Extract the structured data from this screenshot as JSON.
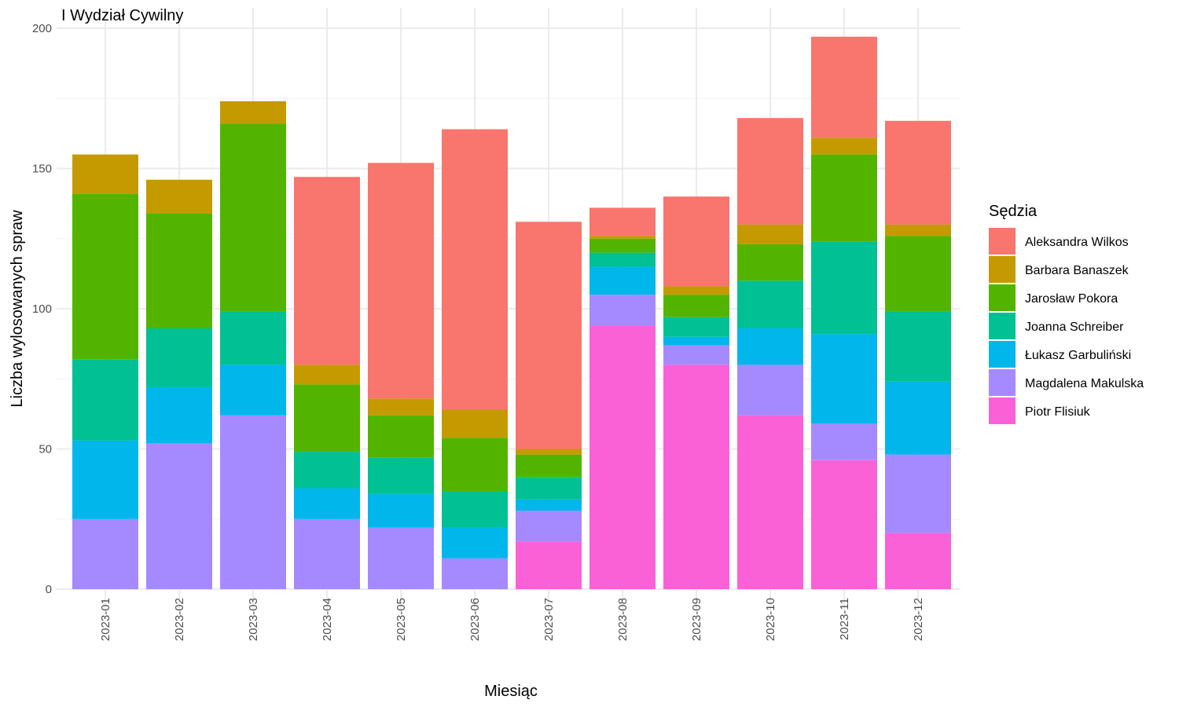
{
  "chart_data": {
    "type": "bar",
    "stacked": true,
    "title": "I Wydział Cywilny",
    "xlabel": "Miesiąc",
    "ylabel": "Liczba wylosowanych spraw",
    "ylim": [
      0,
      200
    ],
    "yticks": [
      0,
      50,
      100,
      150,
      200
    ],
    "grid": true,
    "legend_title": "Sędzia",
    "legend_position": "right",
    "categories": [
      "2023-01",
      "2023-02",
      "2023-03",
      "2023-04",
      "2023-05",
      "2023-06",
      "2023-07",
      "2023-08",
      "2023-09",
      "2023-10",
      "2023-11",
      "2023-12"
    ],
    "series": [
      {
        "name": "Aleksandra Wilkos",
        "color": "#F8766D",
        "values": [
          0,
          0,
          0,
          67,
          84,
          100,
          81,
          10,
          32,
          38,
          36,
          37
        ]
      },
      {
        "name": "Barbara Banaszek",
        "color": "#C49A00",
        "values": [
          14,
          12,
          8,
          7,
          6,
          10,
          2,
          1,
          3,
          7,
          6,
          4
        ]
      },
      {
        "name": "Jarosław Pokora",
        "color": "#53B400",
        "values": [
          59,
          41,
          67,
          24,
          15,
          19,
          8,
          5,
          8,
          13,
          31,
          27
        ]
      },
      {
        "name": "Joanna Schreiber",
        "color": "#00C094",
        "values": [
          29,
          21,
          19,
          13,
          13,
          13,
          8,
          5,
          7,
          17,
          33,
          25
        ]
      },
      {
        "name": "Łukasz Garbuliński",
        "color": "#00B6EB",
        "values": [
          28,
          20,
          18,
          11,
          12,
          11,
          4,
          10,
          3,
          13,
          32,
          26
        ]
      },
      {
        "name": "Magdalena Makulska",
        "color": "#A58AFF",
        "values": [
          25,
          52,
          62,
          25,
          22,
          11,
          11,
          11,
          7,
          18,
          13,
          28
        ]
      },
      {
        "name": "Piotr Flisiuk",
        "color": "#FB61D7",
        "values": [
          0,
          0,
          0,
          0,
          0,
          0,
          17,
          94,
          80,
          62,
          46,
          20
        ]
      }
    ]
  }
}
